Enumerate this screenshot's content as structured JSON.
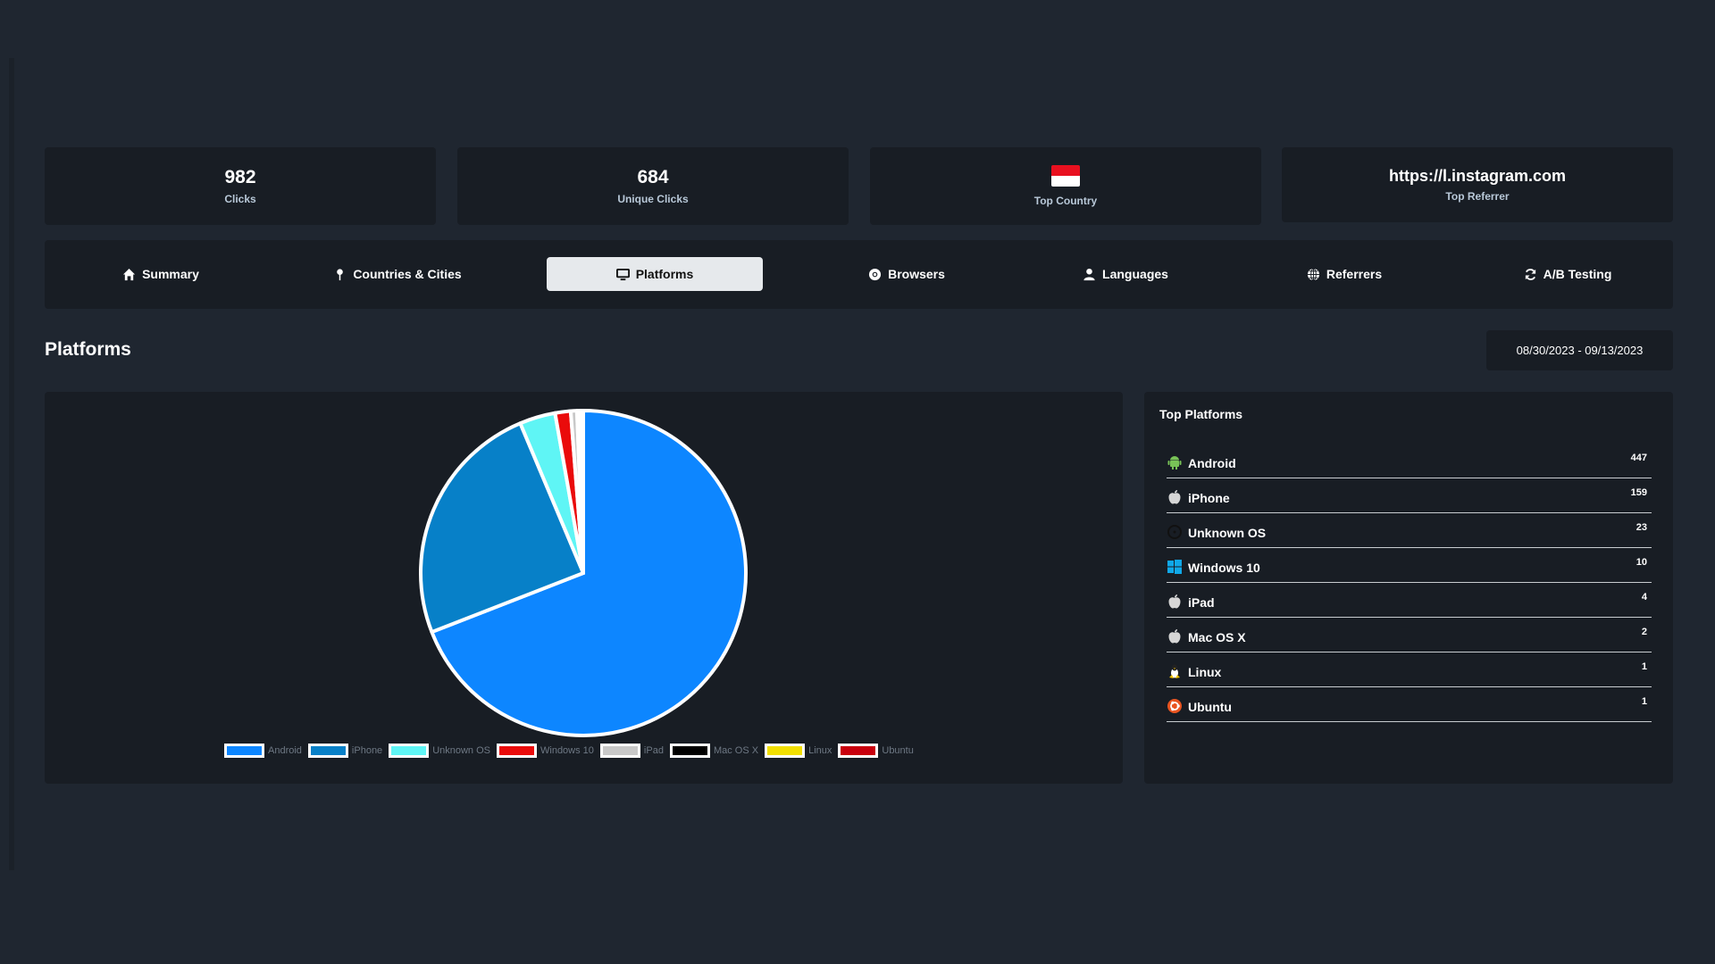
{
  "stats": {
    "clicks": {
      "value": "982",
      "label": "Clicks"
    },
    "unique_clicks": {
      "value": "684",
      "label": "Unique Clicks"
    },
    "top_country": {
      "label": "Top Country",
      "flag": "indonesia-flag"
    },
    "top_referrer": {
      "value": "https://l.instagram.com",
      "label": "Top Referrer"
    }
  },
  "tabs": [
    {
      "label": "Summary",
      "icon": "home-icon"
    },
    {
      "label": "Countries & Cities",
      "icon": "map-pin-icon"
    },
    {
      "label": "Platforms",
      "icon": "monitor-icon",
      "active": true
    },
    {
      "label": "Browsers",
      "icon": "chrome-icon"
    },
    {
      "label": "Languages",
      "icon": "user-icon"
    },
    {
      "label": "Referrers",
      "icon": "globe-icon"
    },
    {
      "label": "A/B Testing",
      "icon": "sync-icon"
    }
  ],
  "section_title": "Platforms",
  "date_range": "08/30/2023 - 09/13/2023",
  "top_platforms": {
    "title": "Top Platforms",
    "items": [
      {
        "name": "Android",
        "count": "447",
        "icon": "android-icon"
      },
      {
        "name": "iPhone",
        "count": "159",
        "icon": "apple-icon"
      },
      {
        "name": "Unknown OS",
        "count": "23",
        "icon": "unknown-os-icon"
      },
      {
        "name": "Windows 10",
        "count": "10",
        "icon": "windows-icon"
      },
      {
        "name": "iPad",
        "count": "4",
        "icon": "apple-icon"
      },
      {
        "name": "Mac OS X",
        "count": "2",
        "icon": "apple-icon"
      },
      {
        "name": "Linux",
        "count": "1",
        "icon": "linux-icon"
      },
      {
        "name": "Ubuntu",
        "count": "1",
        "icon": "ubuntu-icon"
      }
    ]
  },
  "chart_data": {
    "type": "pie",
    "categories": [
      "Android",
      "iPhone",
      "Unknown OS",
      "Windows 10",
      "iPad",
      "Mac OS X",
      "Linux",
      "Ubuntu"
    ],
    "values": [
      447,
      159,
      23,
      10,
      4,
      2,
      1,
      1
    ],
    "colors": [
      "#0d86ff",
      "#0780c8",
      "#5ff5f5",
      "#ea0b0b",
      "#c8c8c8",
      "#000000",
      "#f2df00",
      "#c9000e"
    ],
    "legend_position": "bottom"
  }
}
